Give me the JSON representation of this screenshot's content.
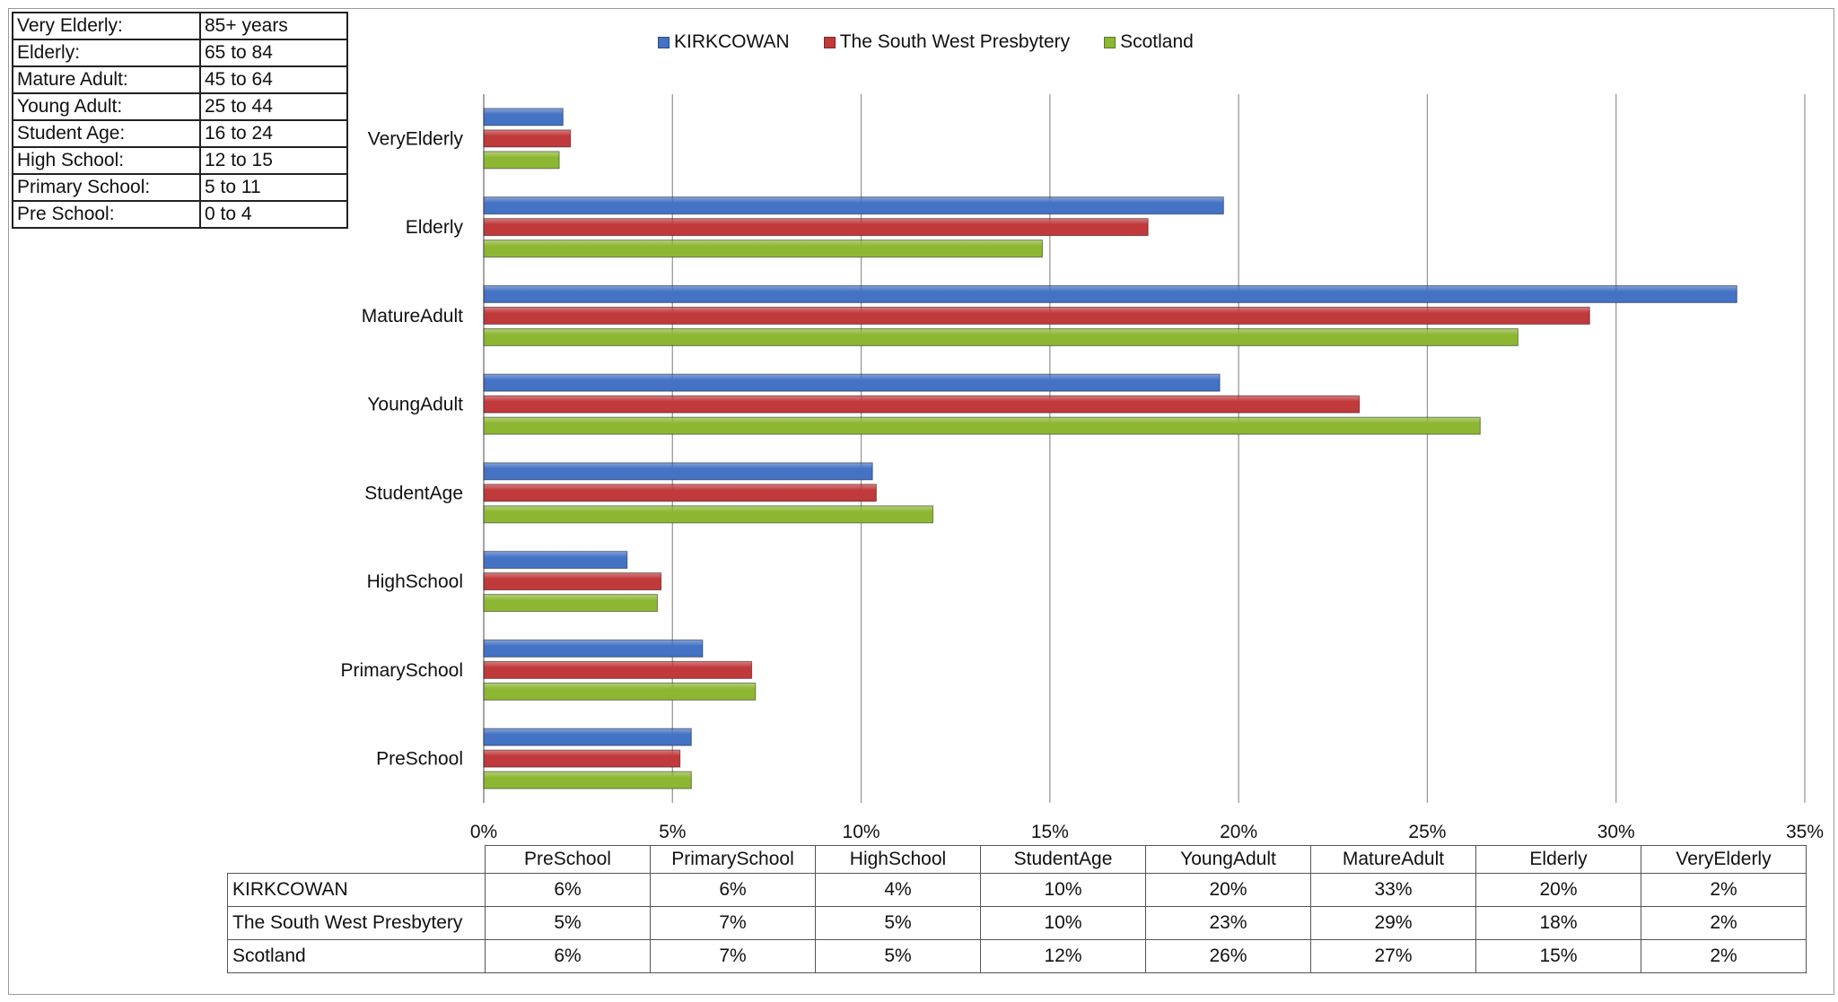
{
  "age_key": [
    {
      "label": "Very Elderly:",
      "range": "85+ years"
    },
    {
      "label": "Elderly:",
      "range": "65 to 84"
    },
    {
      "label": "Mature Adult:",
      "range": "45 to 64"
    },
    {
      "label": "Young Adult:",
      "range": "25 to 44"
    },
    {
      "label": "Student Age:",
      "range": "16 to 24"
    },
    {
      "label": "High School:",
      "range": "12 to 15"
    },
    {
      "label": "Primary School:",
      "range": "5 to 11"
    },
    {
      "label": "Pre School:",
      "range": "0 to 4"
    }
  ],
  "chart_data": {
    "type": "bar",
    "orientation": "horizontal",
    "categories": [
      "PreSchool",
      "PrimarySchool",
      "HighSchool",
      "StudentAge",
      "YoungAdult",
      "MatureAdult",
      "Elderly",
      "VeryElderly"
    ],
    "series": [
      {
        "name": "KIRKCOWAN",
        "color": "#4472c4",
        "values": [
          5.5,
          5.8,
          3.8,
          10.3,
          19.5,
          33.2,
          19.6,
          2.1
        ]
      },
      {
        "name": "The South West Presbytery",
        "color": "#c0393b",
        "values": [
          5.2,
          7.1,
          4.7,
          10.4,
          23.2,
          29.3,
          17.6,
          2.3
        ]
      },
      {
        "name": "Scotland",
        "color": "#8db733",
        "values": [
          5.5,
          7.2,
          4.6,
          11.9,
          26.4,
          27.4,
          14.8,
          2.0
        ]
      }
    ],
    "xlim": [
      0,
      35
    ],
    "x_ticks": [
      "0%",
      "5%",
      "10%",
      "15%",
      "20%",
      "25%",
      "30%",
      "35%"
    ],
    "grid": "vertical",
    "legend_position": "top"
  },
  "data_table": {
    "header": [
      "PreSchool",
      "PrimarySchool",
      "HighSchool",
      "StudentAge",
      "YoungAdult",
      "MatureAdult",
      "Elderly",
      "VeryElderly"
    ],
    "rows": [
      {
        "label": "KIRKCOWAN",
        "values": [
          "6%",
          "6%",
          "4%",
          "10%",
          "20%",
          "33%",
          "20%",
          "2%"
        ]
      },
      {
        "label": "The South West Presbytery",
        "values": [
          "5%",
          "7%",
          "5%",
          "10%",
          "23%",
          "29%",
          "18%",
          "2%"
        ]
      },
      {
        "label": "Scotland",
        "values": [
          "6%",
          "7%",
          "5%",
          "12%",
          "26%",
          "27%",
          "15%",
          "2%"
        ]
      }
    ]
  }
}
